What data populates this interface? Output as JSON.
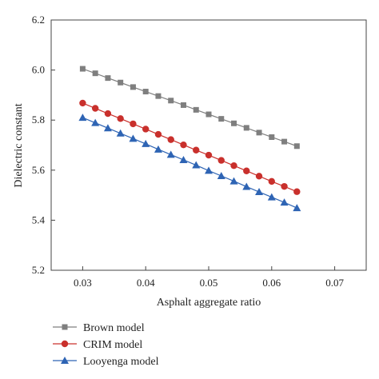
{
  "chart_data": {
    "type": "line",
    "title": "",
    "xlabel": "Asphalt aggregate ratio",
    "ylabel": "Dielectric constant",
    "xlim": [
      0.025,
      0.075
    ],
    "ylim": [
      5.2,
      6.2
    ],
    "xticks": [
      0.03,
      0.04,
      0.05,
      0.06,
      0.07
    ],
    "xtick_labels": [
      "0.03",
      "0.04",
      "0.05",
      "0.06",
      "0.07"
    ],
    "yticks": [
      5.2,
      5.4,
      5.6,
      5.8,
      6.0,
      6.2
    ],
    "ytick_labels": [
      "5.2",
      "5.4",
      "5.6",
      "5.8",
      "6.0",
      "6.2"
    ],
    "grid": false,
    "legend_position": "bottom-left-outside",
    "x": [
      0.03,
      0.032,
      0.034,
      0.036,
      0.038,
      0.04,
      0.042,
      0.044,
      0.046,
      0.048,
      0.05,
      0.052,
      0.054,
      0.056,
      0.058,
      0.06,
      0.062,
      0.064
    ],
    "series": [
      {
        "name": "Brown model",
        "color": "#7f7f7f",
        "marker": "square",
        "values": [
          6.005,
          5.987,
          5.968,
          5.95,
          5.932,
          5.914,
          5.896,
          5.878,
          5.86,
          5.841,
          5.823,
          5.805,
          5.787,
          5.769,
          5.75,
          5.732,
          5.714,
          5.696
        ]
      },
      {
        "name": "CRIM model",
        "color": "#c9302c",
        "marker": "circle",
        "values": [
          5.868,
          5.847,
          5.826,
          5.806,
          5.785,
          5.764,
          5.743,
          5.722,
          5.701,
          5.68,
          5.66,
          5.639,
          5.618,
          5.597,
          5.576,
          5.555,
          5.535,
          5.514
        ]
      },
      {
        "name": "Looyenga model",
        "color": "#2e64b4",
        "marker": "triangle",
        "values": [
          5.81,
          5.789,
          5.768,
          5.747,
          5.726,
          5.705,
          5.683,
          5.662,
          5.641,
          5.62,
          5.598,
          5.577,
          5.556,
          5.534,
          5.513,
          5.492,
          5.471,
          5.449
        ]
      }
    ]
  }
}
